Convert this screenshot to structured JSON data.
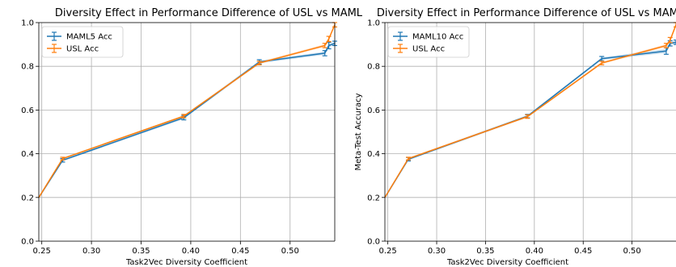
{
  "chart_data": [
    {
      "type": "line",
      "title": "Diversity Effect in Performance Difference of USL vs MAML",
      "xlabel": "Task2Vec Diversity Coefficient",
      "ylabel": "",
      "xlim": [
        0.247,
        0.545
      ],
      "ylim": [
        0.0,
        1.0
      ],
      "xticks": [
        0.25,
        0.3,
        0.35,
        0.4,
        0.45,
        0.5
      ],
      "xtick_labels": [
        "0.25",
        "0.30",
        "0.35",
        "0.40",
        "0.45",
        "0.50"
      ],
      "yticks": [
        0.0,
        0.2,
        0.4,
        0.6,
        0.8,
        1.0
      ],
      "ytick_labels": [
        "0.0",
        "0.2",
        "0.4",
        "0.6",
        "0.8",
        "1.0"
      ],
      "grid": true,
      "legend": "top-left",
      "series": [
        {
          "name": "MAML5 Acc",
          "color": "#1f77b4",
          "x": [
            0.247,
            0.271,
            0.393,
            0.469,
            0.535,
            0.539,
            0.545
          ],
          "y": [
            0.2,
            0.37,
            0.565,
            0.82,
            0.86,
            0.895,
            0.905
          ],
          "err": [
            0.0,
            0.008,
            0.01,
            0.01,
            0.012,
            0.015,
            0.01
          ]
        },
        {
          "name": "USL Acc",
          "color": "#ff7f0e",
          "x": [
            0.247,
            0.271,
            0.393,
            0.469,
            0.535,
            0.539,
            0.545
          ],
          "y": [
            0.2,
            0.378,
            0.572,
            0.815,
            0.895,
            0.925,
            0.99
          ],
          "err": [
            0.0,
            0.006,
            0.008,
            0.008,
            0.01,
            0.012,
            0.01
          ]
        }
      ]
    },
    {
      "type": "line",
      "title": "Diversity Effect in Performance Difference of USL vs MAML",
      "xlabel": "Task2Vec Diversity Coefficient",
      "ylabel": "Meta-Test Accuracy",
      "xlim": [
        0.247,
        0.545
      ],
      "ylim": [
        0.0,
        1.0
      ],
      "xticks": [
        0.25,
        0.3,
        0.35,
        0.4,
        0.45,
        0.5
      ],
      "xtick_labels": [
        "0.25",
        "0.30",
        "0.35",
        "0.40",
        "0.45",
        "0.50"
      ],
      "yticks": [
        0.0,
        0.2,
        0.4,
        0.6,
        0.8,
        1.0
      ],
      "ytick_labels": [
        "0.0",
        "0.2",
        "0.4",
        "0.6",
        "0.8",
        "1.0"
      ],
      "grid": true,
      "legend": "top-left",
      "series": [
        {
          "name": "MAML10 Acc",
          "color": "#1f77b4",
          "x": [
            0.247,
            0.271,
            0.393,
            0.469,
            0.535,
            0.539,
            0.545
          ],
          "y": [
            0.2,
            0.375,
            0.572,
            0.835,
            0.87,
            0.905,
            0.91
          ],
          "err": [
            0.0,
            0.008,
            0.008,
            0.01,
            0.015,
            0.012,
            0.01
          ]
        },
        {
          "name": "USL Acc",
          "color": "#ff7f0e",
          "x": [
            0.247,
            0.271,
            0.393,
            0.469,
            0.535,
            0.539,
            0.545
          ],
          "y": [
            0.2,
            0.378,
            0.57,
            0.815,
            0.895,
            0.92,
            0.99
          ],
          "err": [
            0.0,
            0.006,
            0.008,
            0.008,
            0.01,
            0.012,
            0.01
          ]
        }
      ]
    }
  ]
}
